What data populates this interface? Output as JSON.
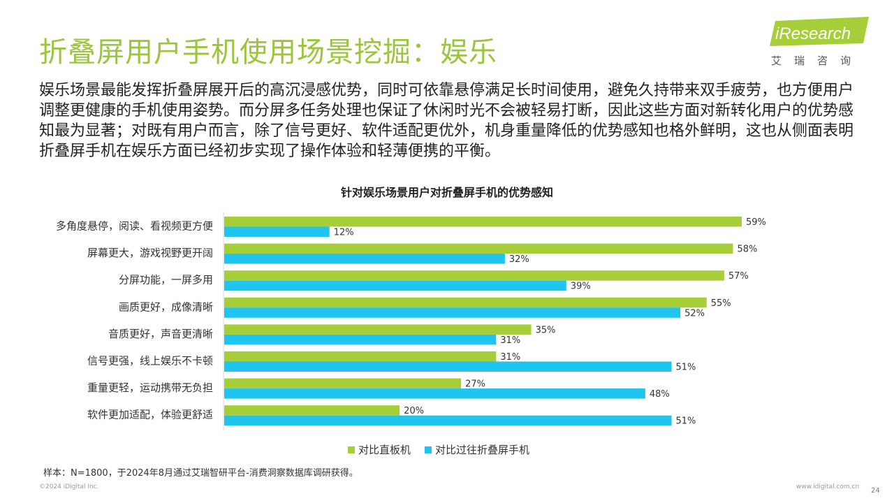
{
  "page": {
    "title": "折叠屏用户手机使用场景挖掘：娱乐",
    "logo_text": "iResearch",
    "logo_sub": "艾瑞咨询",
    "body": "娱乐场景最能发挥折叠屏展开后的高沉浸感优势，同时可依靠悬停满足长时间使用，避免久持带来双手疲劳，也方便用户调整更健康的手机使用姿势。而分屏多任务处理也保证了休闲时光不会被轻易打断，因此这些方面对新转化用户的优势感知最为显著；对既有用户而言，除了信号更好、软件适配更优外，机身重量降低的优势感知也格外鲜明，这也从侧面表明折叠屏手机在娱乐方面已经初步实现了操作体验和轻薄便携的平衡。",
    "note": "样本：N=1800，于2024年8月通过艾瑞智研平台-消费洞察数据库调研获得。",
    "copyright": "©2024 iDigital Inc.",
    "site": "www.idigital.com.cn",
    "page_number": "24"
  },
  "colors": {
    "green": "#a6ce39",
    "blue": "#1fc4ef",
    "title_green": "#9bc53d"
  },
  "chart_data": {
    "type": "bar",
    "orientation": "horizontal",
    "title": "针对娱乐场景用户对折叠屏手机的优势感知",
    "categories": [
      "多角度悬停，阅读、看视频更方便",
      "屏幕更大，游戏视野更开阔",
      "分屏功能，一屏多用",
      "画质更好，成像清晰",
      "音质更好，声音更清晰",
      "信号更强，线上娱乐不卡顿",
      "重量更轻，运动携带无负担",
      "软件更加适配，体验更舒适"
    ],
    "series": [
      {
        "name": "对比直板机",
        "color": "#a6ce39",
        "values": [
          59,
          58,
          57,
          55,
          35,
          31,
          27,
          20
        ]
      },
      {
        "name": "对比过往折叠屏手机",
        "color": "#1fc4ef",
        "values": [
          12,
          32,
          39,
          52,
          31,
          51,
          48,
          51
        ]
      }
    ],
    "value_suffix": "%",
    "xlim": [
      0,
      60
    ],
    "legend_position": "bottom",
    "grid": false
  }
}
